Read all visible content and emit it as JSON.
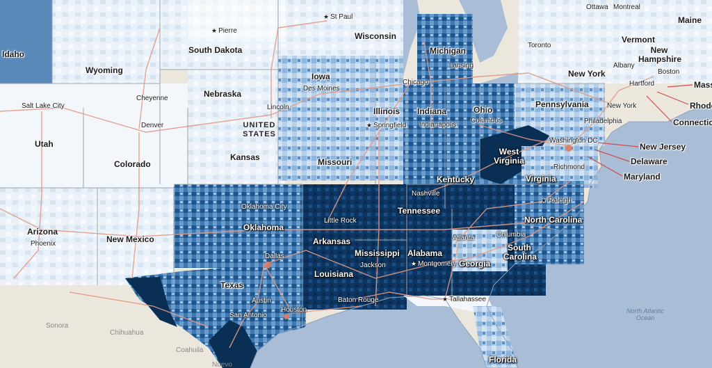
{
  "labels": {
    "states": [
      "Idaho",
      "Wyoming",
      "South Dakota",
      "Nebraska",
      "Utah",
      "Colorado",
      "Kansas",
      "Iowa",
      "Wisconsin",
      "Michigan",
      "Illinois",
      "Indiana",
      "Ohio",
      "Missouri",
      "Pennsylvania",
      "New York",
      "Vermont",
      "New Hampshire",
      "Maine",
      "Arizona",
      "New Mexico",
      "Oklahoma",
      "Texas",
      "Arkansas",
      "Louisiana",
      "Mississippi",
      "Alabama",
      "Georgia",
      "Tennessee",
      "Kentucky",
      "West Virginia",
      "Virginia",
      "North Carolina",
      "South Carolina",
      "Florida"
    ],
    "callouts": [
      "New Jersey",
      "Delaware",
      "Maryland",
      "Mass",
      "Rhode",
      "Connectic"
    ],
    "cities": [
      "Pierre",
      "St Paul",
      "Cheyenne",
      "Salt Lake City",
      "Denver",
      "Lincoln",
      "Des Moines",
      "Chicago",
      "Lansing",
      "Springfield",
      "Indianapolis",
      "Columbus",
      "Toronto",
      "Ottawa",
      "Montreal",
      "Albany",
      "Boston",
      "Hartford",
      "New York",
      "Philadelphia",
      "Washington DC",
      "Richmond",
      "Raleigh",
      "Nashville",
      "Columbia",
      "Atlanta",
      "Montgomery",
      "Jackson",
      "Little Rock",
      "Oklahoma City",
      "Dallas",
      "Austin",
      "San Antonio",
      "Houston",
      "Baton Rouge",
      "Tallahassee",
      "Phoenix"
    ],
    "country": "UNITED STATES",
    "mexico": [
      "Sonora",
      "Chihuahua",
      "Coahuila",
      "Nuevo"
    ],
    "ocean": "North Atlantic Ocean"
  },
  "colors": {
    "ocean": "#a9bdd6",
    "land": "#ece7dd",
    "road": "#e29a86",
    "border": "#9aa3ad",
    "class_1": "#f4f8fc",
    "class_2": "#d3e2f0",
    "class_3": "#a5c3e0",
    "class_4": "#5b8fc2",
    "class_5": "#2b6198",
    "class_6": "#0a2f54"
  },
  "legend_visible": false
}
